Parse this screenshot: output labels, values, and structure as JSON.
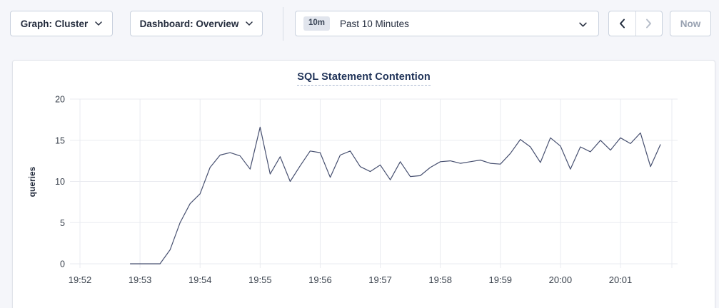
{
  "toolbar": {
    "graph_selector": {
      "label": "Graph: Cluster"
    },
    "dashboard_selector": {
      "label": "Dashboard: Overview"
    },
    "time_window": {
      "badge": "10m",
      "label": "Past 10 Minutes"
    },
    "now_button_label": "Now"
  },
  "colors": {
    "line": "#475070",
    "grid": "#e9ebf0",
    "axis_text": "#3a424d",
    "title": "#213459",
    "disabled_text": "#98a1b1"
  },
  "chart_data": {
    "type": "line",
    "title": "SQL Statement Contention",
    "ylabel": "queries",
    "ylim": [
      0,
      20
    ],
    "yticks": [
      0,
      5,
      10,
      15,
      20
    ],
    "x_tick_labels": [
      "19:52",
      "19:53",
      "19:54",
      "19:55",
      "19:56",
      "19:57",
      "19:58",
      "19:59",
      "20:00",
      "20:01"
    ],
    "x_axis_start": "19:52:00",
    "sample_interval_seconds": 10,
    "grid": true,
    "legend": "none",
    "series": [
      {
        "name": "queries",
        "color": "#475070",
        "start_offset_seconds": 50,
        "values": [
          0,
          0,
          0,
          0,
          1.7,
          5,
          7.3,
          8.5,
          11.7,
          13.2,
          13.5,
          13.1,
          11.5,
          16.6,
          10.9,
          13,
          10,
          11.9,
          13.7,
          13.5,
          10.5,
          13.2,
          13.7,
          11.8,
          11.2,
          12,
          10.2,
          12.4,
          10.6,
          10.7,
          11.7,
          12.4,
          12.5,
          12.2,
          12.4,
          12.6,
          12.2,
          12.1,
          13.4,
          15.1,
          14.2,
          12.3,
          15.3,
          14.3,
          11.5,
          14.2,
          13.6,
          15,
          13.8,
          15.3,
          14.6,
          15.9,
          11.8,
          14.5
        ]
      }
    ]
  }
}
